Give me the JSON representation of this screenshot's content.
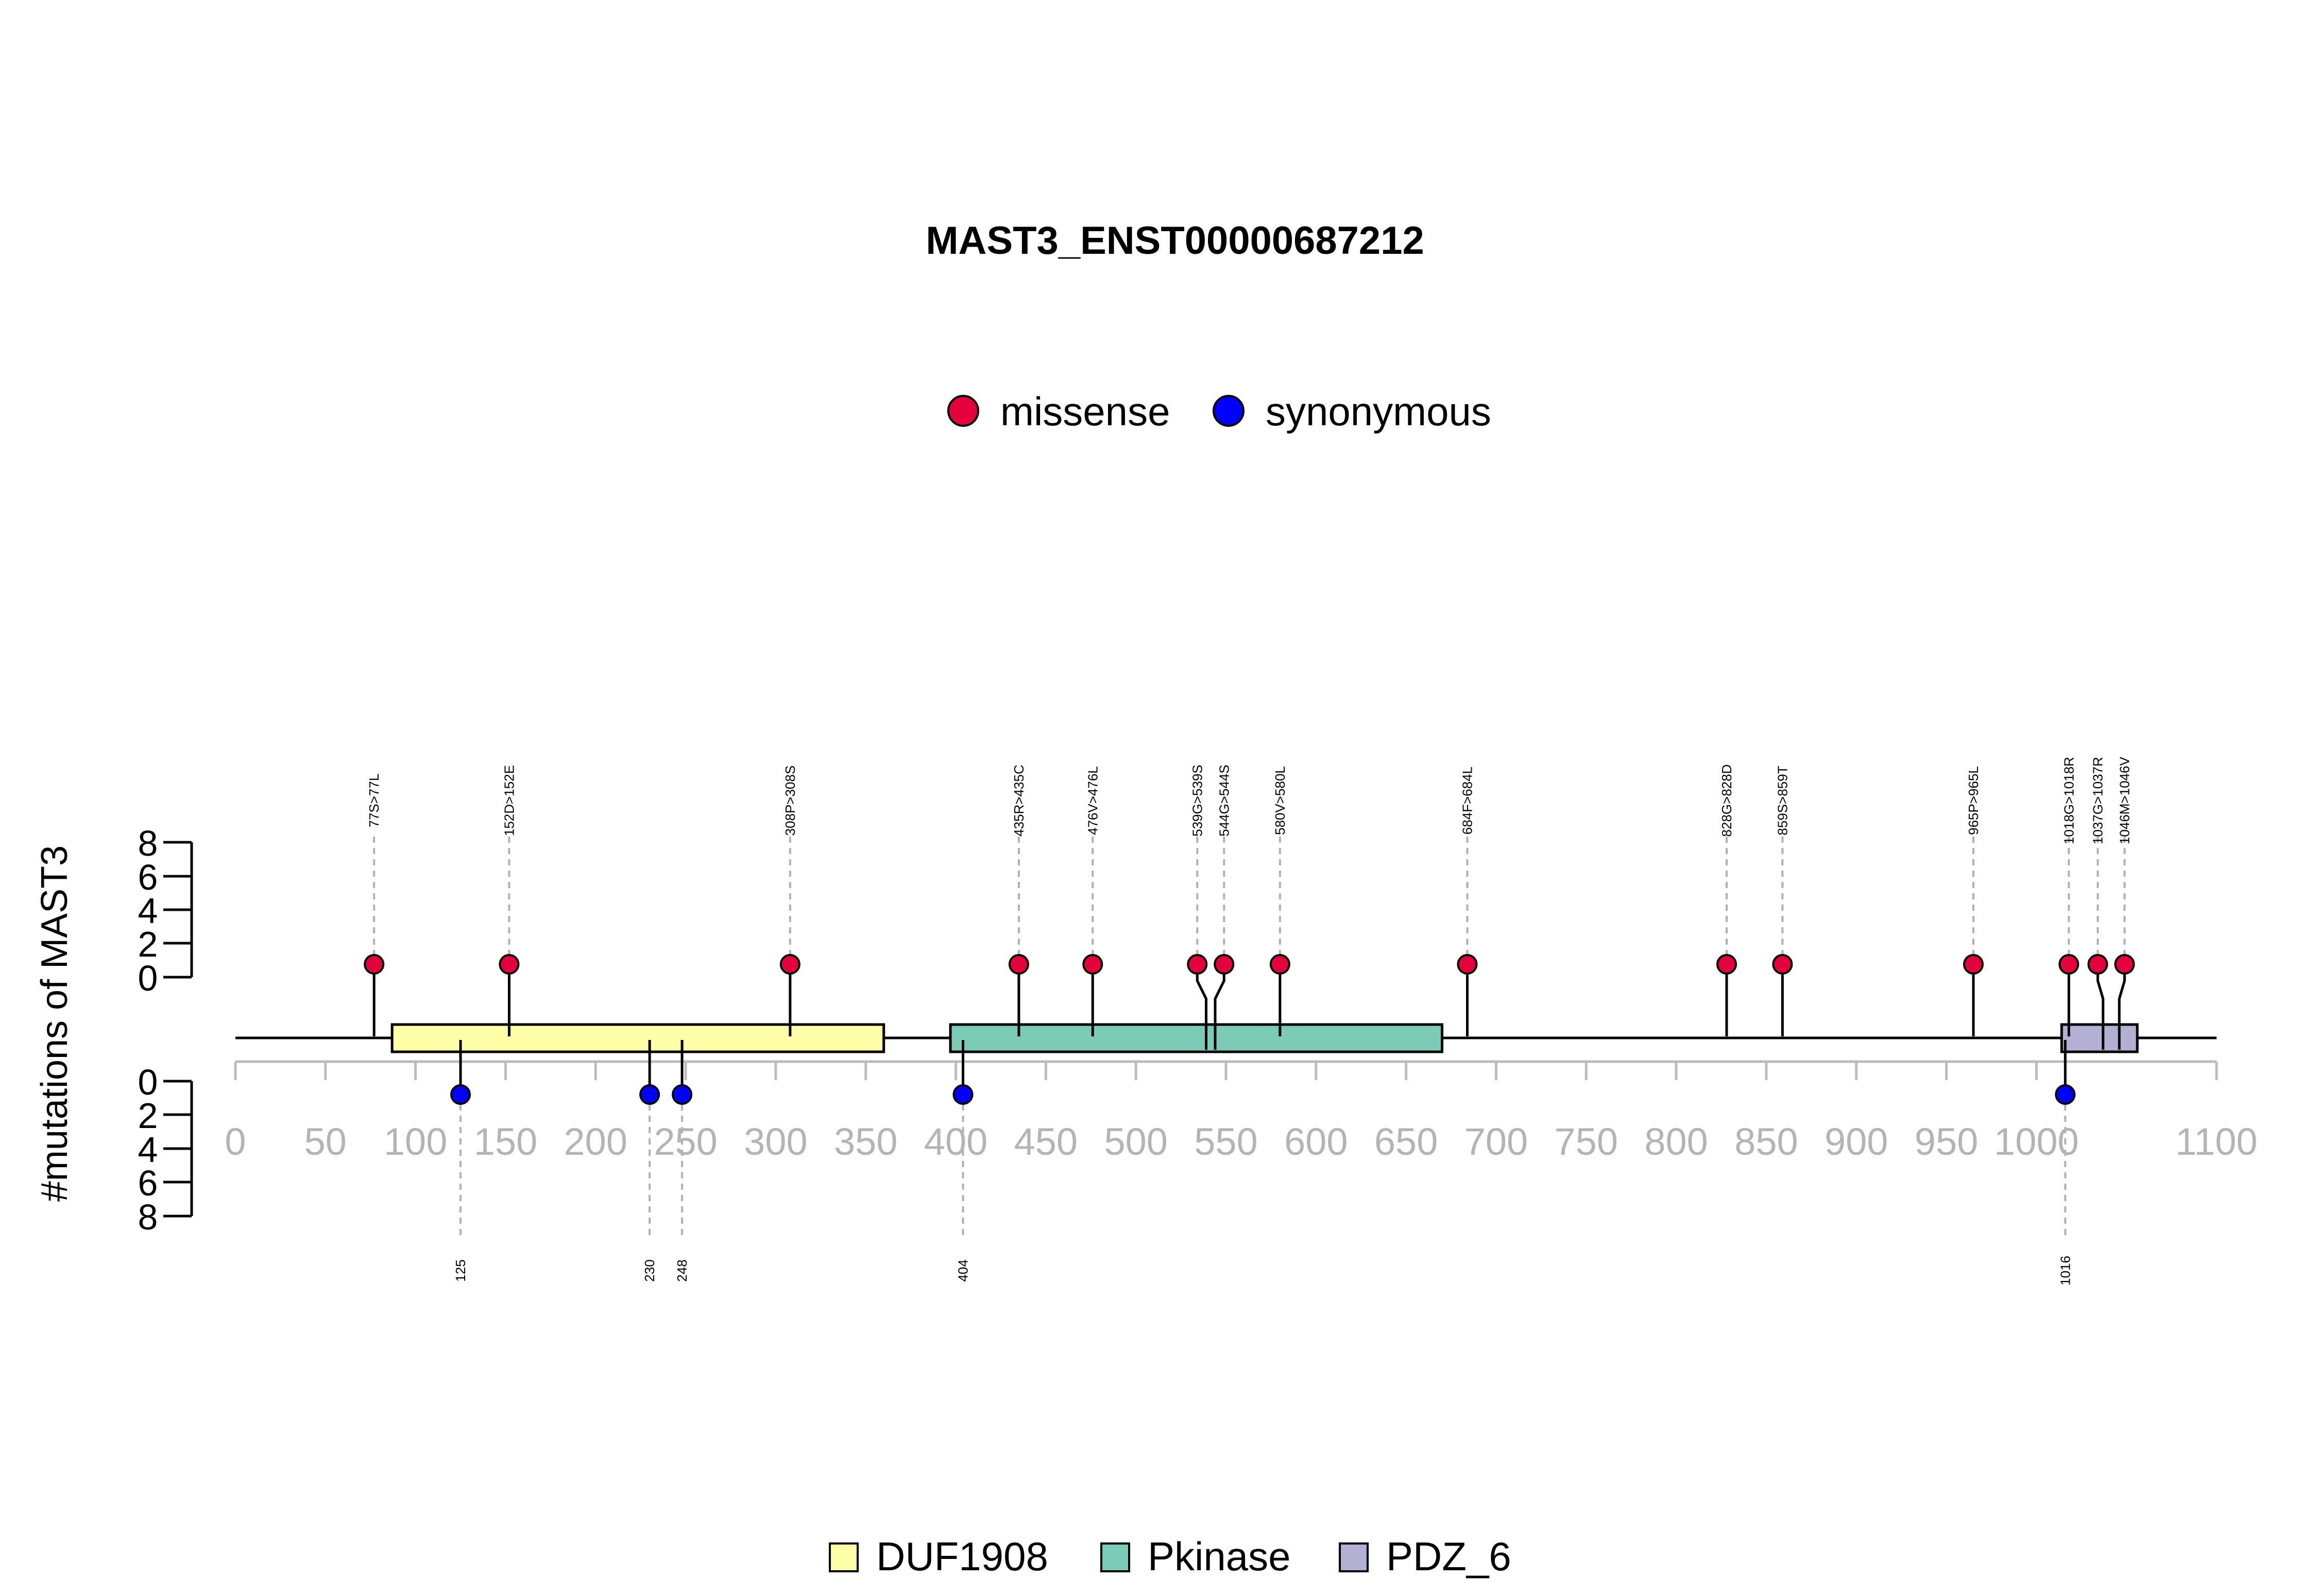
{
  "chart_data": {
    "type": "lollipop",
    "title": "MAST3_ENST00000687212",
    "ylabel": "#mutations of MAST3",
    "gene": "MAST3",
    "xlim": [
      0,
      1100
    ],
    "x_ticks": [
      0,
      50,
      100,
      150,
      200,
      250,
      300,
      350,
      400,
      450,
      500,
      550,
      600,
      650,
      700,
      750,
      800,
      850,
      900,
      950,
      1000,
      1100
    ],
    "y_ticks_top": [
      "0",
      "2",
      "4",
      "6",
      "8"
    ],
    "y_ticks_bottom": [
      "0",
      "2",
      "4",
      "6",
      "8"
    ],
    "ylim": [
      0,
      8
    ],
    "legend_mutation": [
      {
        "name": "missense",
        "color": "#e4003a"
      },
      {
        "name": "synonymous",
        "color": "#0000ff"
      }
    ],
    "domains": [
      {
        "name": "DUF1908",
        "start": 87,
        "end": 360,
        "color": "#ffffa8"
      },
      {
        "name": "Pkinase",
        "start": 397,
        "end": 670,
        "color": "#7ccbb6"
      },
      {
        "name": "PDZ_6",
        "start": 1014,
        "end": 1056,
        "color": "#b4b0d4"
      }
    ],
    "protein_length": 1100,
    "missense": [
      {
        "pos": 77,
        "label": "77S>77L",
        "count": 1
      },
      {
        "pos": 152,
        "label": "152D>152E",
        "count": 1
      },
      {
        "pos": 308,
        "label": "308P>308S",
        "count": 1
      },
      {
        "pos": 435,
        "label": "435R>435C",
        "count": 1
      },
      {
        "pos": 476,
        "label": "476V>476L",
        "count": 1
      },
      {
        "pos": 539,
        "label": "539G>539S",
        "count": 1
      },
      {
        "pos": 544,
        "label": "544G>544S",
        "count": 1
      },
      {
        "pos": 580,
        "label": "580V>580L",
        "count": 1
      },
      {
        "pos": 684,
        "label": "684F>684L",
        "count": 1
      },
      {
        "pos": 828,
        "label": "828G>828D",
        "count": 1
      },
      {
        "pos": 859,
        "label": "859S>859T",
        "count": 1
      },
      {
        "pos": 965,
        "label": "965P>965L",
        "count": 1
      },
      {
        "pos": 1018,
        "label": "1018G>1018R",
        "count": 1
      },
      {
        "pos": 1037,
        "label": "1037G>1037R",
        "count": 1
      },
      {
        "pos": 1046,
        "label": "1046M>1046V",
        "count": 1
      }
    ],
    "synonymous": [
      {
        "pos": 125,
        "label": "125",
        "count": 1
      },
      {
        "pos": 230,
        "label": "230",
        "count": 1
      },
      {
        "pos": 248,
        "label": "248",
        "count": 1
      },
      {
        "pos": 404,
        "label": "404",
        "count": 1
      },
      {
        "pos": 1016,
        "label": "1016",
        "count": 1
      }
    ]
  }
}
